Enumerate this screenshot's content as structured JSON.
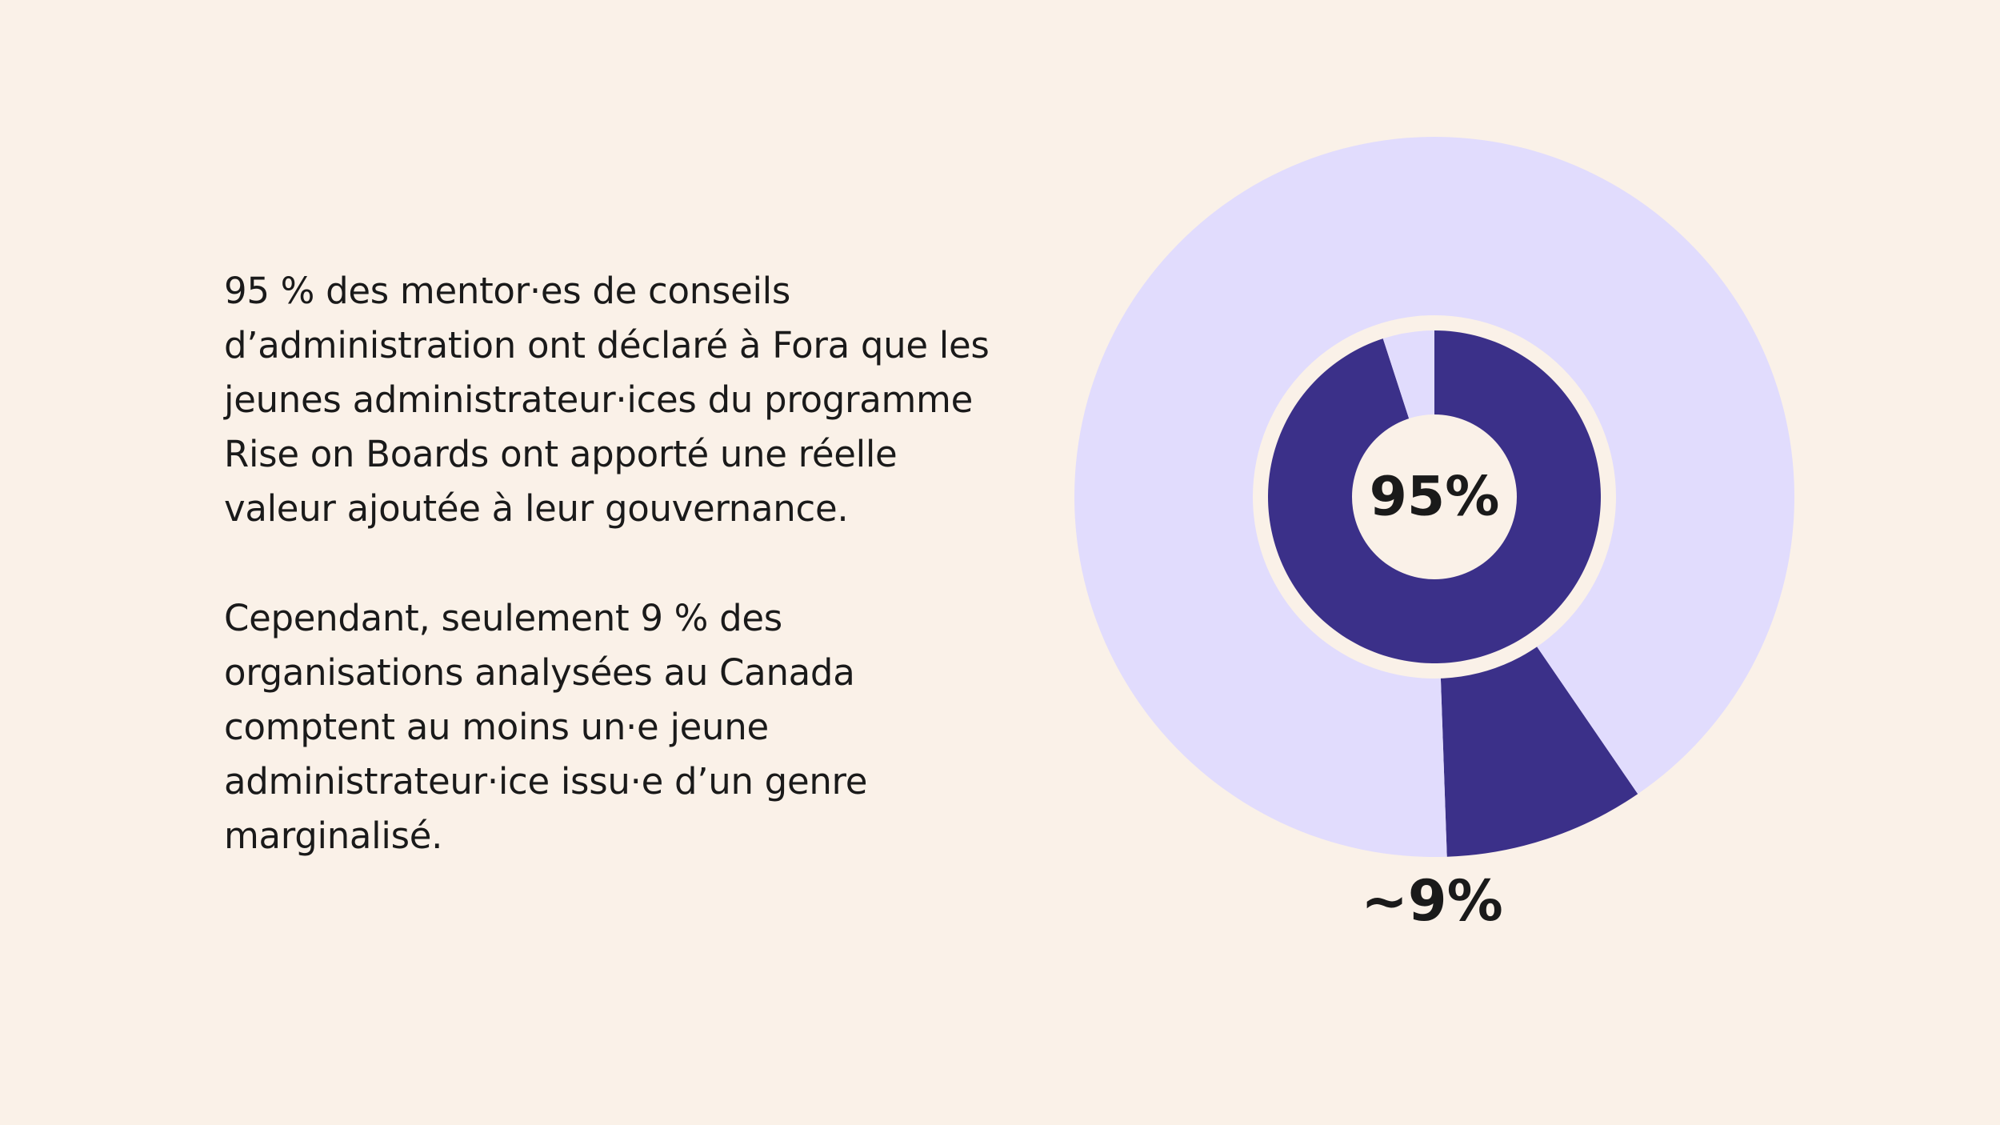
{
  "colors": {
    "background": "#FAF1E8",
    "outer_fill": "#E1DCFD",
    "accent": "#3B3089",
    "separator": "#FAF1E8",
    "text": "#1A1A1A"
  },
  "text": {
    "paragraph_1": "95 % des mentor·es de conseils d’administration ont déclaré à Fora que les jeunes administrateur·ices du programme Rise on Boards ont apporté une réelle valeur ajoutée à leur gouvernance.",
    "paragraph_2": "Cependant, seulement 9 % des organisations analysées au Canada comptent au moins un·e jeune administrateur·ice issu·e d’un genre marginalisé."
  },
  "chart_data": [
    {
      "type": "pie",
      "ring": "inner",
      "slices": [
        {
          "label": "95%",
          "value": 95,
          "color": "#3B3089"
        },
        {
          "label": "",
          "value": 5,
          "color": "#E1DCFD"
        }
      ],
      "center_label": "95%"
    },
    {
      "type": "pie",
      "ring": "outer",
      "slices": [
        {
          "label": "~9%",
          "value": 9,
          "color": "#3B3089"
        },
        {
          "label": "",
          "value": 91,
          "color": "#E1DCFD"
        }
      ],
      "value_label": "~9%"
    }
  ]
}
